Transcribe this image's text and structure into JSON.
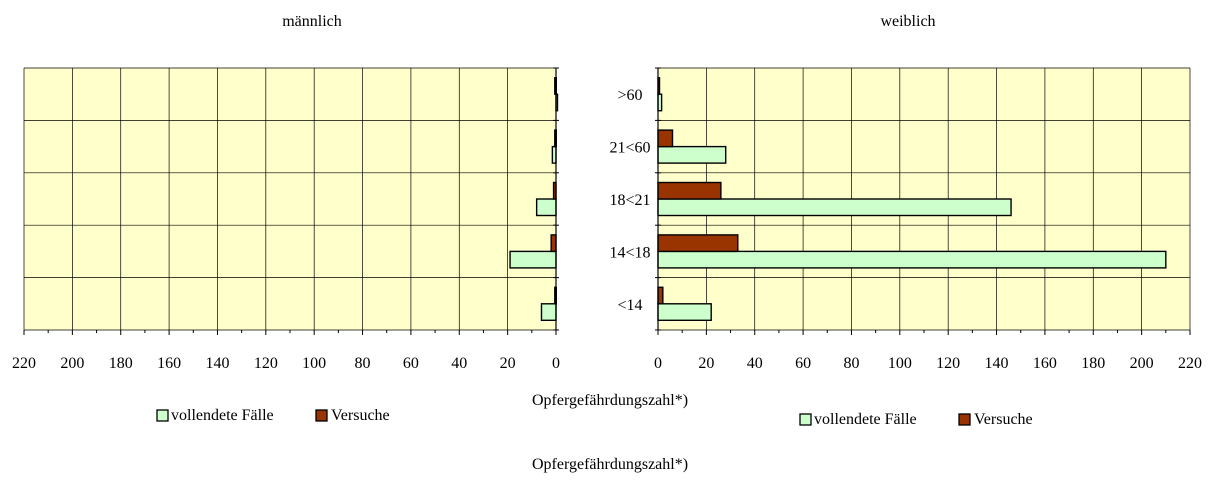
{
  "colors": {
    "plot_bg": "#FFFFCC",
    "completed": "#CCFFCC",
    "attempts": "#993300",
    "grid": "#000000"
  },
  "chart_data": [
    {
      "type": "bar",
      "orientation": "horizontal",
      "direction": "right-to-left",
      "title": "männlich",
      "xlabel": "Opfergefährdungszahl*)",
      "categories": [
        "<14",
        "14<18",
        "18<21",
        "21<60",
        ">60"
      ],
      "category_labels_shown": false,
      "xlim": [
        0,
        220
      ],
      "x_ticks": [
        0,
        20,
        40,
        60,
        80,
        100,
        120,
        140,
        160,
        180,
        200,
        220
      ],
      "grid": true,
      "legend_position": "bottom",
      "series": [
        {
          "name": "vollendete Fälle",
          "values": [
            6,
            19,
            8,
            1.5,
            0
          ]
        },
        {
          "name": "Versuche",
          "values": [
            0.5,
            2,
            1,
            0.5,
            0.5
          ]
        }
      ]
    },
    {
      "type": "bar",
      "orientation": "horizontal",
      "direction": "left-to-right",
      "title": "weiblich",
      "xlabel": "Opfergefährdungszahl*)",
      "categories": [
        "<14",
        "14<18",
        "18<21",
        "21<60",
        ">60"
      ],
      "category_labels_shown": true,
      "xlim": [
        0,
        220
      ],
      "x_ticks": [
        0,
        20,
        40,
        60,
        80,
        100,
        120,
        140,
        160,
        180,
        200,
        220
      ],
      "grid": true,
      "legend_position": "bottom",
      "series": [
        {
          "name": "vollendete Fälle",
          "values": [
            22,
            210,
            146,
            28,
            1.5
          ]
        },
        {
          "name": "Versuche",
          "values": [
            2,
            33,
            26,
            6,
            0.5
          ]
        }
      ]
    }
  ]
}
